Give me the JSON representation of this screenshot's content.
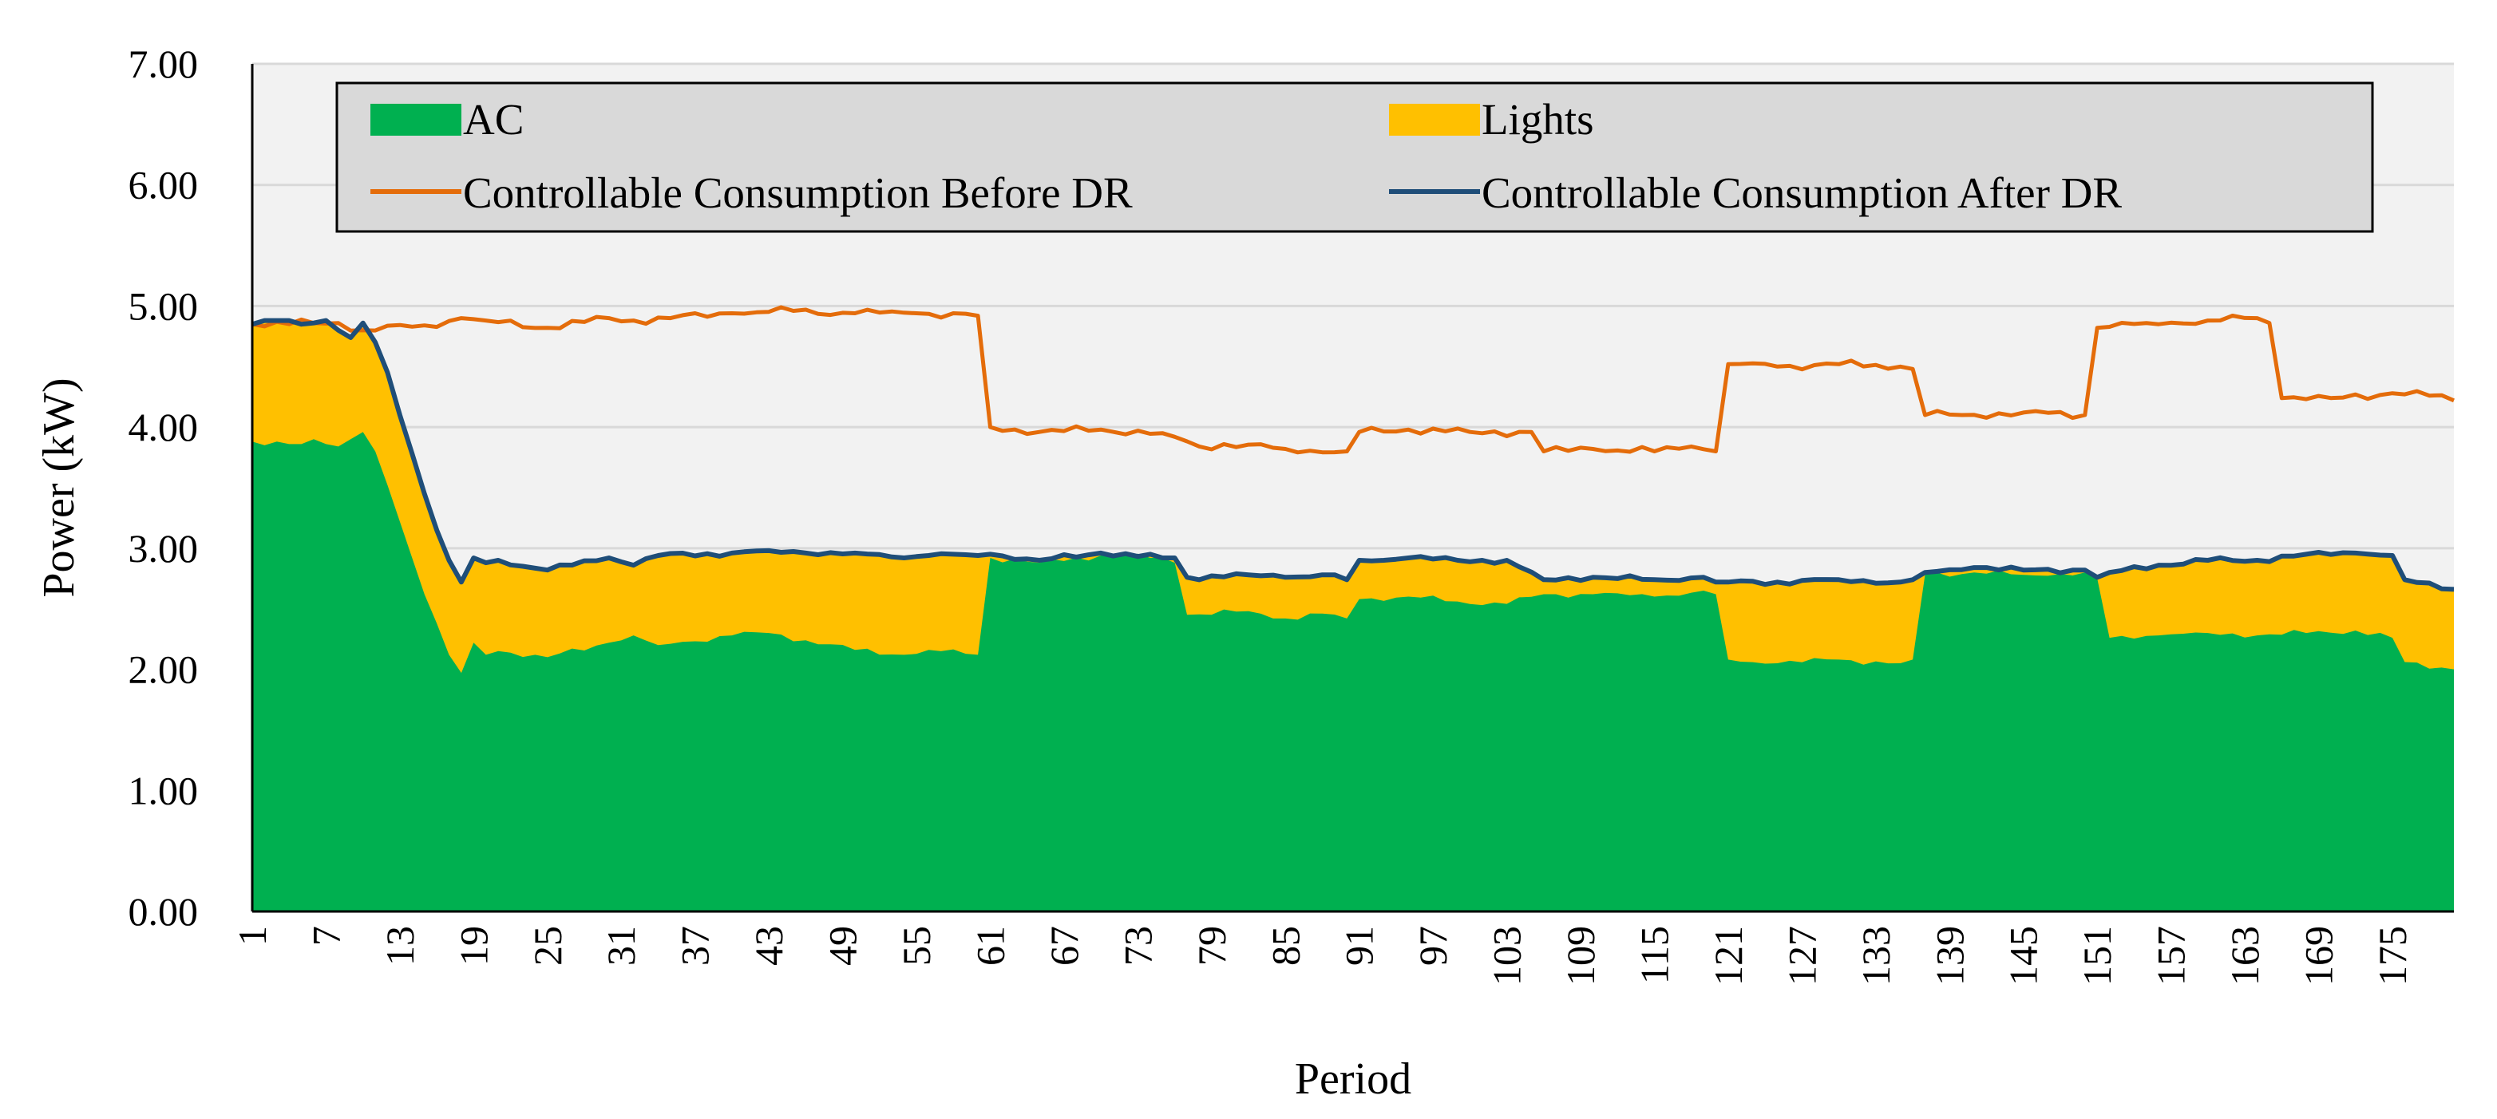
{
  "chart_data": {
    "type": "area",
    "title": "",
    "xlabel": "Period",
    "ylabel": "Power (kW)",
    "ylim": [
      0,
      7
    ],
    "yticks": [
      "0.00",
      "1.00",
      "2.00",
      "3.00",
      "4.00",
      "5.00",
      "6.00",
      "7.00"
    ],
    "grid": true,
    "legend_position": "top",
    "n_periods": 180,
    "x_tick_labels": [
      "1",
      "7",
      "13",
      "19",
      "25",
      "31",
      "37",
      "43",
      "49",
      "55",
      "61",
      "67",
      "73",
      "79",
      "85",
      "91",
      "97",
      "103",
      "109",
      "115",
      "121",
      "127",
      "133",
      "139",
      "145",
      "151",
      "157",
      "163",
      "169",
      "175"
    ],
    "colors": {
      "ac": "#00B050",
      "lights": "#FFC000",
      "before": "#E46C0A",
      "after": "#1F4E79",
      "plot_bg": "#F2F2F2",
      "grid": "#D9D9D9",
      "legend_bg": "#D9D9D9"
    },
    "legend": {
      "ac": "AC",
      "lights": "Lights",
      "before": "Controllable Consumption Before DR",
      "after": "Controllable Consumption After DR"
    },
    "series_ac_keypoints": [
      [
        1,
        3.88
      ],
      [
        2,
        3.85
      ],
      [
        3,
        3.88
      ],
      [
        4,
        3.86
      ],
      [
        5,
        3.86
      ],
      [
        6,
        3.9
      ],
      [
        7,
        3.86
      ],
      [
        8,
        3.84
      ],
      [
        9,
        3.9
      ],
      [
        10,
        3.96
      ],
      [
        11,
        3.8
      ],
      [
        12,
        3.52
      ],
      [
        13,
        3.22
      ],
      [
        14,
        2.92
      ],
      [
        15,
        2.62
      ],
      [
        16,
        2.38
      ],
      [
        17,
        2.12
      ],
      [
        18,
        1.97
      ],
      [
        19,
        2.22
      ],
      [
        20,
        2.12
      ],
      [
        21,
        2.15
      ],
      [
        25,
        2.1
      ],
      [
        30,
        2.22
      ],
      [
        32,
        2.28
      ],
      [
        34,
        2.2
      ],
      [
        40,
        2.28
      ],
      [
        43,
        2.3
      ],
      [
        46,
        2.24
      ],
      [
        50,
        2.16
      ],
      [
        54,
        2.12
      ],
      [
        56,
        2.16
      ],
      [
        60,
        2.12
      ],
      [
        61,
        2.92
      ],
      [
        65,
        2.88
      ],
      [
        70,
        2.94
      ],
      [
        75,
        2.92
      ],
      [
        76,
        2.88
      ],
      [
        77,
        2.45
      ],
      [
        82,
        2.48
      ],
      [
        85,
        2.42
      ],
      [
        88,
        2.46
      ],
      [
        90,
        2.42
      ],
      [
        91,
        2.58
      ],
      [
        95,
        2.6
      ],
      [
        99,
        2.56
      ],
      [
        103,
        2.54
      ],
      [
        106,
        2.62
      ],
      [
        110,
        2.62
      ],
      [
        115,
        2.6
      ],
      [
        119,
        2.65
      ],
      [
        120,
        2.62
      ],
      [
        121,
        2.08
      ],
      [
        125,
        2.05
      ],
      [
        130,
        2.08
      ],
      [
        135,
        2.05
      ],
      [
        136,
        2.08
      ],
      [
        137,
        2.78
      ],
      [
        141,
        2.8
      ],
      [
        145,
        2.78
      ],
      [
        150,
        2.8
      ],
      [
        151,
        2.75
      ],
      [
        152,
        2.26
      ],
      [
        156,
        2.28
      ],
      [
        160,
        2.3
      ],
      [
        164,
        2.28
      ],
      [
        168,
        2.3
      ],
      [
        172,
        2.32
      ],
      [
        175,
        2.26
      ],
      [
        176,
        2.06
      ],
      [
        180,
        2.0
      ]
    ],
    "series_after_keypoints": [
      [
        1,
        4.85
      ],
      [
        2,
        4.88
      ],
      [
        3,
        4.88
      ],
      [
        4,
        4.88
      ],
      [
        5,
        4.85
      ],
      [
        6,
        4.86
      ],
      [
        7,
        4.88
      ],
      [
        8,
        4.8
      ],
      [
        9,
        4.74
      ],
      [
        10,
        4.86
      ],
      [
        11,
        4.7
      ],
      [
        12,
        4.45
      ],
      [
        13,
        4.1
      ],
      [
        14,
        3.78
      ],
      [
        15,
        3.45
      ],
      [
        16,
        3.15
      ],
      [
        17,
        2.9
      ],
      [
        18,
        2.72
      ],
      [
        19,
        2.92
      ],
      [
        20,
        2.88
      ],
      [
        21,
        2.9
      ],
      [
        25,
        2.82
      ],
      [
        30,
        2.92
      ],
      [
        32,
        2.86
      ],
      [
        34,
        2.94
      ],
      [
        40,
        2.96
      ],
      [
        43,
        2.98
      ],
      [
        46,
        2.96
      ],
      [
        50,
        2.96
      ],
      [
        54,
        2.92
      ],
      [
        56,
        2.94
      ],
      [
        60,
        2.94
      ],
      [
        61,
        2.95
      ],
      [
        65,
        2.9
      ],
      [
        70,
        2.96
      ],
      [
        75,
        2.92
      ],
      [
        76,
        2.92
      ],
      [
        77,
        2.76
      ],
      [
        82,
        2.78
      ],
      [
        85,
        2.76
      ],
      [
        88,
        2.78
      ],
      [
        90,
        2.74
      ],
      [
        91,
        2.9
      ],
      [
        95,
        2.92
      ],
      [
        99,
        2.9
      ],
      [
        103,
        2.9
      ],
      [
        106,
        2.74
      ],
      [
        110,
        2.76
      ],
      [
        115,
        2.74
      ],
      [
        119,
        2.76
      ],
      [
        120,
        2.72
      ],
      [
        121,
        2.72
      ],
      [
        125,
        2.72
      ],
      [
        130,
        2.74
      ],
      [
        135,
        2.72
      ],
      [
        136,
        2.74
      ],
      [
        137,
        2.8
      ],
      [
        141,
        2.84
      ],
      [
        145,
        2.82
      ],
      [
        150,
        2.82
      ],
      [
        151,
        2.76
      ],
      [
        152,
        2.8
      ],
      [
        156,
        2.86
      ],
      [
        160,
        2.9
      ],
      [
        164,
        2.9
      ],
      [
        168,
        2.95
      ],
      [
        172,
        2.96
      ],
      [
        175,
        2.94
      ],
      [
        176,
        2.74
      ],
      [
        180,
        2.66
      ]
    ],
    "series_before_keypoints": [
      [
        1,
        4.85
      ],
      [
        8,
        4.86
      ],
      [
        10,
        4.8
      ],
      [
        15,
        4.84
      ],
      [
        18,
        4.9
      ],
      [
        20,
        4.88
      ],
      [
        25,
        4.82
      ],
      [
        30,
        4.9
      ],
      [
        32,
        4.88
      ],
      [
        35,
        4.9
      ],
      [
        40,
        4.94
      ],
      [
        45,
        4.96
      ],
      [
        50,
        4.94
      ],
      [
        55,
        4.94
      ],
      [
        60,
        4.92
      ],
      [
        61,
        4.0
      ],
      [
        65,
        3.96
      ],
      [
        70,
        3.98
      ],
      [
        75,
        3.95
      ],
      [
        76,
        3.92
      ],
      [
        78,
        3.84
      ],
      [
        80,
        3.86
      ],
      [
        85,
        3.82
      ],
      [
        90,
        3.8
      ],
      [
        91,
        3.96
      ],
      [
        95,
        3.98
      ],
      [
        100,
        3.96
      ],
      [
        105,
        3.96
      ],
      [
        106,
        3.8
      ],
      [
        110,
        3.82
      ],
      [
        115,
        3.8
      ],
      [
        118,
        3.84
      ],
      [
        120,
        3.8
      ],
      [
        121,
        4.52
      ],
      [
        125,
        4.5
      ],
      [
        130,
        4.52
      ],
      [
        135,
        4.5
      ],
      [
        136,
        4.48
      ],
      [
        137,
        4.1
      ],
      [
        140,
        4.1
      ],
      [
        145,
        4.12
      ],
      [
        150,
        4.1
      ],
      [
        151,
        4.82
      ],
      [
        155,
        4.86
      ],
      [
        160,
        4.88
      ],
      [
        164,
        4.9
      ],
      [
        165,
        4.86
      ],
      [
        166,
        4.24
      ],
      [
        170,
        4.24
      ],
      [
        175,
        4.28
      ],
      [
        178,
        4.26
      ],
      [
        180,
        4.22
      ]
    ],
    "jitter_ac": 0.03,
    "jitter_after": 0.025,
    "jitter_before": 0.035
  }
}
